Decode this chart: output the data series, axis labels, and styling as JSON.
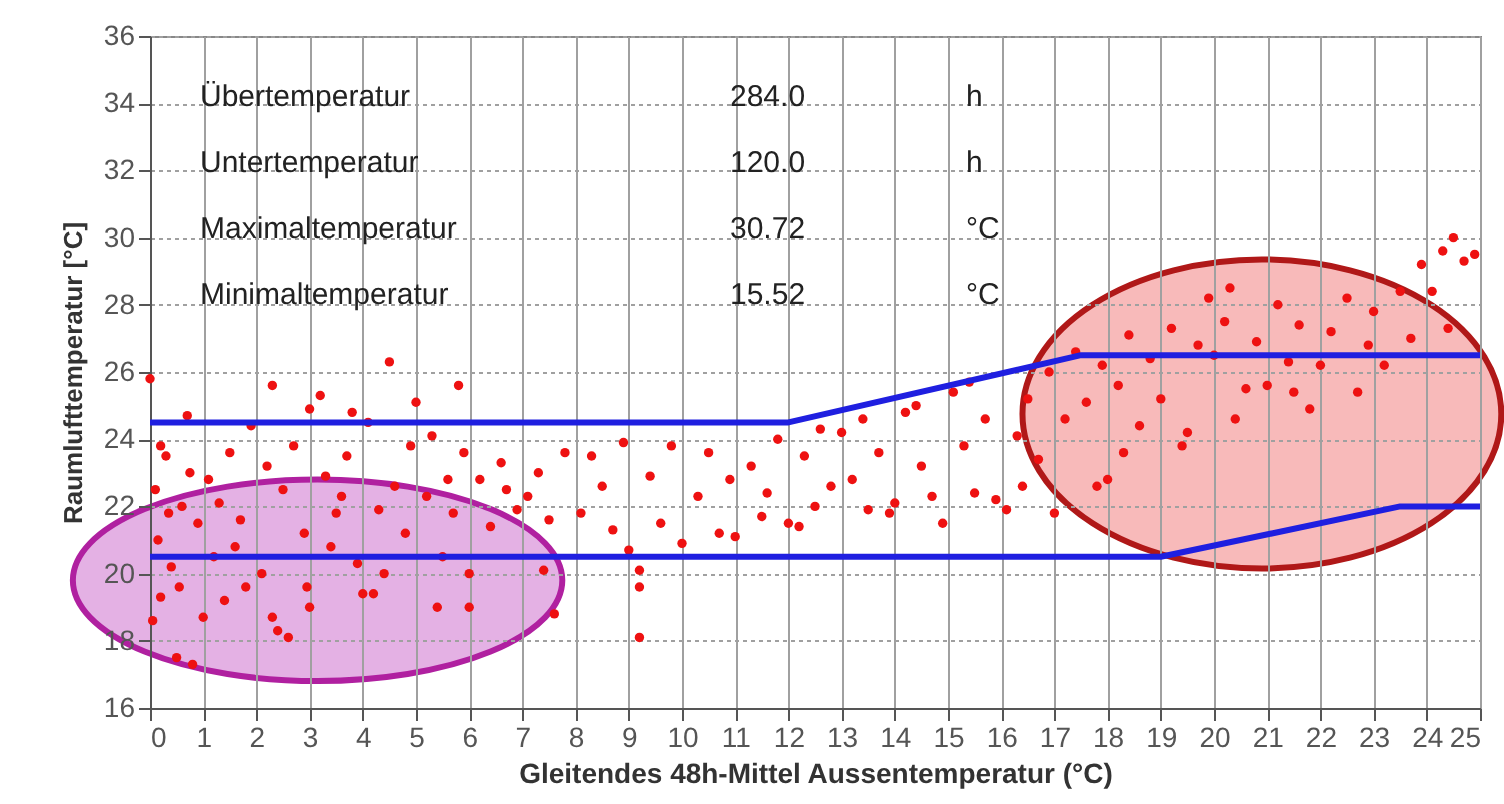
{
  "chart_data": {
    "type": "scatter",
    "xlabel": "Gleitendes 48h-Mittel Aussentemperatur (°C)",
    "ylabel": "Raumlufttemperatur [°C]",
    "annotations": [
      "Übertemperatur",
      "284.0",
      "h",
      "Untertemperatur",
      "120.0",
      "h",
      "Maximaltemperatur",
      "30.72",
      "°C",
      "Minimaltemperatur",
      "15.52",
      "°C"
    ],
    "xlim": [
      0,
      25
    ],
    "xticks": [
      0,
      1,
      2,
      3,
      4,
      5,
      6,
      7,
      8,
      9,
      10,
      11,
      12,
      13,
      14,
      15,
      16,
      17,
      18,
      19,
      20,
      21,
      22,
      23,
      24,
      25
    ],
    "ylim": [
      16,
      36
    ],
    "yticks": [
      16,
      18,
      20,
      22,
      24,
      26,
      28,
      30,
      32,
      34,
      36
    ],
    "grid": true,
    "series": [
      {
        "type": "scatter",
        "marker": "circle",
        "color": "#ee1111",
        "x": [
          0,
          0.1,
          0.15,
          0.2,
          0.05,
          0.3,
          0.4,
          0.5,
          0.6,
          0.7,
          0.8,
          0.9,
          0.2,
          0.35,
          0.55,
          0.75,
          1,
          1.1,
          1.2,
          1.4,
          1.5,
          1.7,
          1.9,
          1.8,
          1.3,
          1.6,
          2.1,
          2.3,
          2.3,
          2.4,
          2.6,
          2.5,
          2.7,
          2.9,
          2.95,
          2.2,
          3,
          3,
          3.2,
          3.3,
          3.5,
          3.7,
          3.8,
          3.9,
          3.4,
          3.6,
          4,
          4.1,
          4.2,
          4.4,
          4.5,
          4.6,
          4.8,
          4.9,
          4.3,
          5,
          5.2,
          5.4,
          5.5,
          5.7,
          5.8,
          5.9,
          5.6,
          5.3,
          6,
          6,
          6.2,
          6.4,
          6.6,
          6.9,
          6.7,
          7.1,
          7.4,
          7.5,
          7.6,
          7.8,
          7.3,
          8.1,
          8.3,
          8.5,
          8.7,
          8.9,
          9,
          9.2,
          9.2,
          9.2,
          9.4,
          9.6,
          9.8,
          10,
          10.3,
          10.5,
          10.7,
          10.9,
          11,
          11.3,
          11.5,
          11.8,
          11.6,
          12,
          12.2,
          12.3,
          12.6,
          12.8,
          12.5,
          13,
          13.2,
          13.5,
          13.7,
          13.9,
          13.4,
          14,
          14.2,
          14.5,
          14.7,
          14.9,
          14.4,
          15.1,
          15.3,
          15.5,
          15.7,
          15.9,
          15.4,
          16.1,
          16.3,
          16.5,
          16.7,
          16.9,
          16.4,
          17,
          17.2,
          17.4,
          17.6,
          17.8,
          17.9,
          18,
          18.2,
          18.4,
          18.6,
          18.8,
          18.3,
          19,
          19.2,
          19.5,
          19.7,
          19.9,
          19.4,
          20,
          20.2,
          20.4,
          20.6,
          20.8,
          20.3,
          21,
          21.2,
          21.4,
          21.6,
          21.8,
          21.5,
          22,
          22.2,
          22.5,
          22.7,
          22.9,
          23,
          23.2,
          23.5,
          23.7,
          23.9,
          24.1,
          24.3,
          24.5,
          24.7,
          24.9,
          24.4
        ],
        "values": [
          25.8,
          22.5,
          21,
          19.3,
          18.6,
          23.5,
          20.2,
          17.5,
          22,
          24.7,
          17.3,
          21.5,
          23.8,
          21.8,
          19.6,
          23,
          18.7,
          22.8,
          20.5,
          19.2,
          23.6,
          21.6,
          24.4,
          19.6,
          22.1,
          20.8,
          20,
          25.6,
          18.7,
          18.3,
          18.1,
          22.5,
          23.8,
          21.2,
          19.6,
          23.2,
          19,
          24.9,
          25.3,
          22.9,
          21.8,
          23.5,
          24.8,
          20.3,
          20.8,
          22.3,
          19.4,
          24.5,
          19.4,
          20,
          26.3,
          22.6,
          21.2,
          23.8,
          21.9,
          25.1,
          22.3,
          19,
          20.5,
          21.8,
          25.6,
          23.6,
          22.8,
          24.1,
          19,
          20,
          22.8,
          21.4,
          23.3,
          21.9,
          22.5,
          22.3,
          20.1,
          21.6,
          18.8,
          23.6,
          23,
          21.8,
          23.5,
          22.6,
          21.3,
          23.9,
          20.7,
          20.1,
          19.6,
          18.1,
          22.9,
          21.5,
          23.8,
          20.9,
          22.3,
          23.6,
          21.2,
          22.8,
          21.1,
          23.2,
          21.7,
          24,
          22.4,
          21.5,
          21.4,
          23.5,
          24.3,
          22.6,
          22,
          24.2,
          22.8,
          21.9,
          23.6,
          21.8,
          24.6,
          22.1,
          24.8,
          23.2,
          22.3,
          21.5,
          25,
          25.4,
          23.8,
          22.4,
          24.6,
          22.2,
          25.7,
          21.9,
          24.1,
          25.2,
          23.4,
          26,
          22.6,
          21.8,
          24.6,
          26.6,
          25.1,
          22.6,
          26.2,
          22.8,
          25.6,
          27.1,
          24.4,
          26.4,
          23.6,
          25.2,
          27.3,
          24.2,
          26.8,
          28.2,
          23.8,
          26.5,
          27.5,
          24.6,
          25.5,
          26.9,
          28.5,
          25.6,
          28,
          26.3,
          27.4,
          24.9,
          25.4,
          26.2,
          27.2,
          28.2,
          25.4,
          26.8,
          27.8,
          26.2,
          28.4,
          27,
          29.2,
          28.4,
          29.6,
          30,
          29.3,
          29.5,
          27.3
        ]
      },
      {
        "type": "line",
        "color": "#1f1fe0",
        "x": [
          0,
          12,
          17.5,
          25
        ],
        "values": [
          24.5,
          24.5,
          26.5,
          26.5
        ]
      },
      {
        "type": "line",
        "color": "#1f1fe0",
        "x": [
          0,
          19,
          23.5,
          25
        ],
        "values": [
          20.5,
          20.5,
          22,
          22
        ]
      }
    ]
  }
}
